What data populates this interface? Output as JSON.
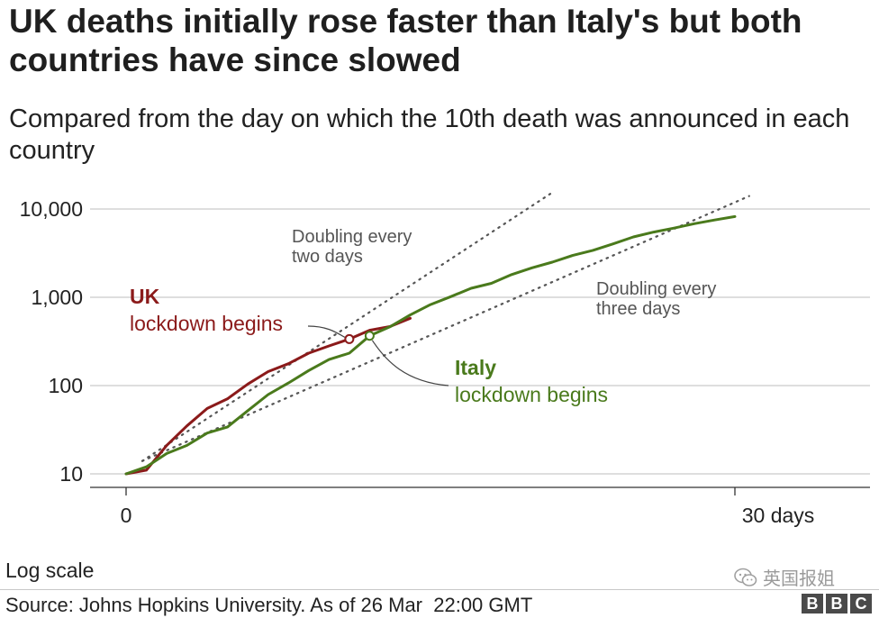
{
  "header": {
    "title": "UK deaths initially rose faster than Italy's but both countries have since slowed",
    "subtitle": "Compared from the day on which the 10th death was announced in each country"
  },
  "chart_data": {
    "type": "line",
    "title": "UK deaths initially rose faster than Italy's but both countries have since slowed",
    "subtitle": "Compared from the day on which the 10th death was announced in each country",
    "y_scale": "log",
    "ylim": [
      10,
      10000
    ],
    "y_ticks": [
      10,
      100,
      1000,
      10000
    ],
    "y_tick_labels": [
      "10",
      "100",
      "1,000",
      "10,000"
    ],
    "xlim": [
      0,
      30
    ],
    "x_ticks": [
      0,
      30
    ],
    "x_tick_labels": [
      "0",
      "30 days"
    ],
    "grid": "horizontal",
    "series": [
      {
        "name": "UK",
        "color": "#8b1a1a",
        "x": [
          0,
          1,
          2,
          3,
          4,
          5,
          6,
          7,
          8,
          9,
          10,
          11,
          12,
          13,
          14
        ],
        "y": [
          10,
          11,
          21,
          35,
          55,
          71,
          104,
          144,
          177,
          233,
          281,
          336,
          423,
          466,
          578
        ]
      },
      {
        "name": "Italy",
        "color": "#4a7a1c",
        "x": [
          0,
          1,
          2,
          3,
          4,
          5,
          6,
          7,
          8,
          9,
          10,
          11,
          12,
          13,
          14,
          15,
          16,
          17,
          18,
          19,
          20,
          21,
          22,
          23,
          24,
          25,
          26,
          27,
          28,
          29,
          30
        ],
        "y": [
          10,
          12,
          17,
          21,
          29,
          34,
          52,
          79,
          107,
          148,
          197,
          233,
          366,
          463,
          631,
          827,
          1016,
          1266,
          1441,
          1809,
          2158,
          2503,
          2978,
          3405,
          4032,
          4825,
          5476,
          6077,
          6820,
          7503,
          8215
        ]
      }
    ],
    "annotations": [
      {
        "series": "UK",
        "x": 11,
        "y": 336,
        "label_1": "UK",
        "label_2": "lockdown begins"
      },
      {
        "series": "Italy",
        "x": 12,
        "y": 366,
        "label_1": "Italy",
        "label_2": "lockdown begins"
      },
      {
        "label_1": "Doubling every",
        "label_2": "two days",
        "doubling_days": 2
      },
      {
        "label_1": "Doubling every",
        "label_2": "three days",
        "doubling_days": 3
      }
    ],
    "reference_line_color": "#555555",
    "gridline_color": "#c9c9c9"
  },
  "footer": {
    "scale_note": "Log scale",
    "source": "Source: Johns Hopkins University. As of 26 Mar  22:00 GMT",
    "watermark_text": "英国报姐",
    "brand": [
      "B",
      "B",
      "C"
    ]
  }
}
